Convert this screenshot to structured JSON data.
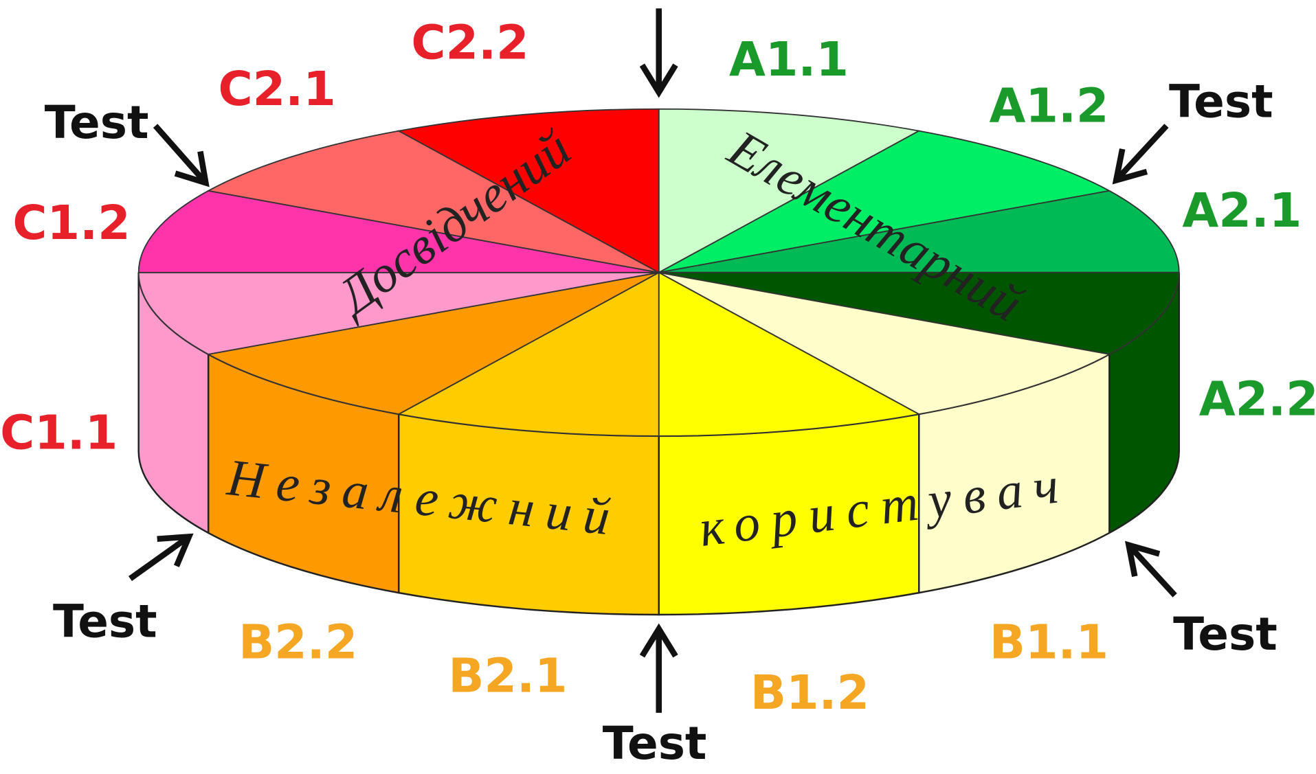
{
  "segments": [
    {
      "label": "A1.1",
      "color": "#ccffcc",
      "label_color": "#1a9a2a"
    },
    {
      "label": "A1.2",
      "color": "#00ee66",
      "label_color": "#1a9a2a"
    },
    {
      "label": "A2.1",
      "color": "#00bb55",
      "label_color": "#1a9a2a"
    },
    {
      "label": "A2.2",
      "color": "#005500",
      "label_color": "#1a9a2a"
    },
    {
      "label": "B1.1",
      "color": "#ffffcc",
      "label_color": "#f5a623"
    },
    {
      "label": "B1.2",
      "color": "#ffff00",
      "label_color": "#f5a623"
    },
    {
      "label": "B2.1",
      "color": "#ffcc00",
      "label_color": "#f5a623"
    },
    {
      "label": "B2.2",
      "color": "#ff9900",
      "label_color": "#f5a623"
    },
    {
      "label": "C1.1",
      "color": "#ff99cc",
      "label_color": "#e8202a"
    },
    {
      "label": "C1.2",
      "color": "#ff33aa",
      "label_color": "#e8202a"
    },
    {
      "label": "C2.1",
      "color": "#ff6666",
      "label_color": "#e8202a"
    },
    {
      "label": "C2.2",
      "color": "#ff0000",
      "label_color": "#e8202a"
    }
  ],
  "tests": [
    "Test",
    "Test",
    "Test",
    "Test",
    "Test"
  ],
  "levels": {
    "proficient": "Досвідчений",
    "basic": "Елементарний",
    "independent_1": "Незалежний",
    "independent_2": "користувач"
  }
}
